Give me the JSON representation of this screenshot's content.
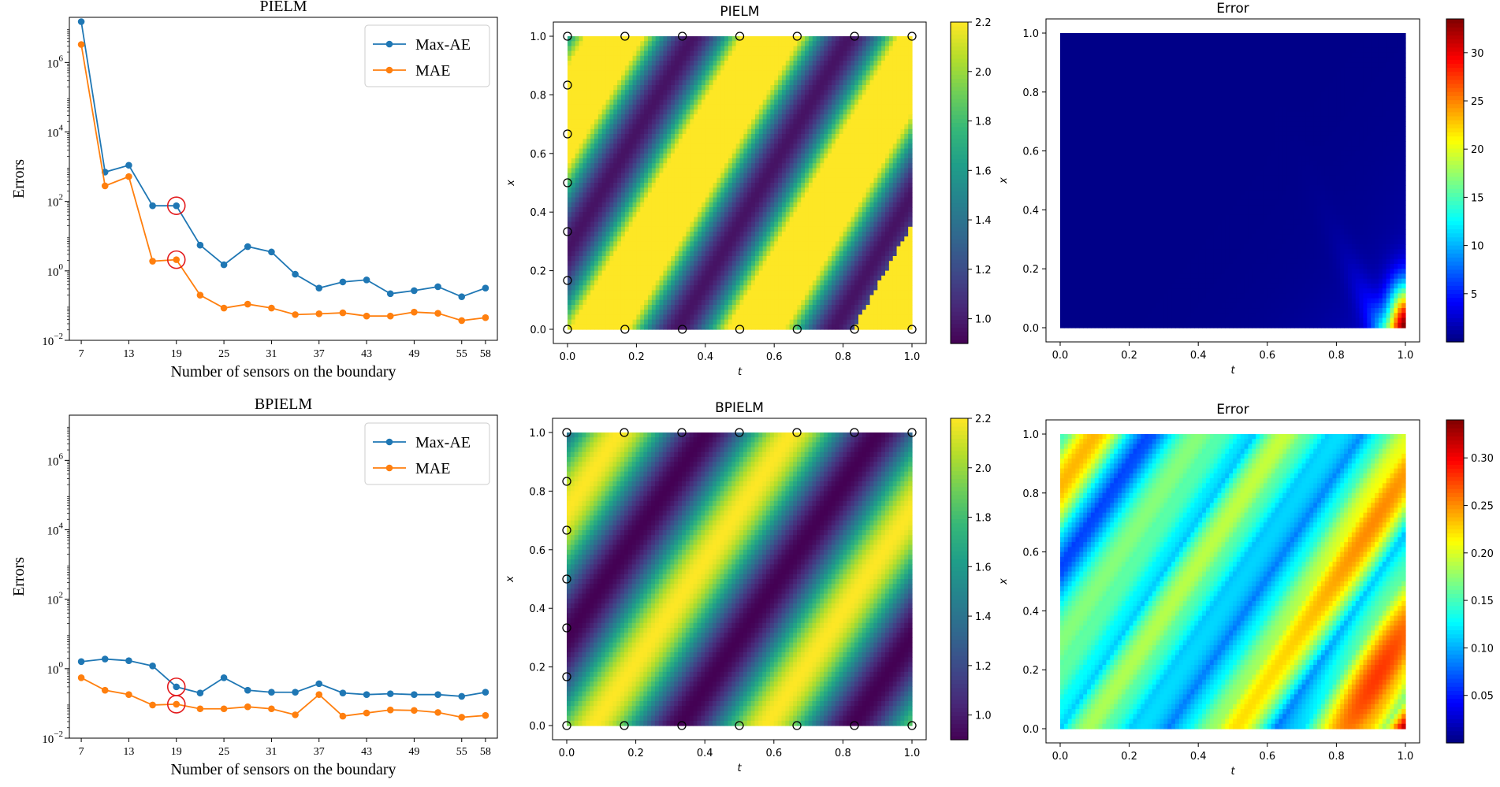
{
  "chart_data": [
    {
      "type": "line",
      "title": "PIELM",
      "xlabel": "Number of sensors on the boundary",
      "ylabel": "Errors",
      "yscale": "log",
      "ylim": [
        0.01,
        20000000
      ],
      "xlim": [
        5.5,
        59.5
      ],
      "xticks": [
        7,
        13,
        19,
        25,
        31,
        37,
        43,
        49,
        55,
        58
      ],
      "yticks": [
        0.01,
        1,
        100,
        10000,
        1000000
      ],
      "ytick_labels": [
        [
          "10",
          "−2"
        ],
        [
          "10",
          "0"
        ],
        [
          "10",
          "2"
        ],
        [
          "10",
          "4"
        ],
        [
          "10",
          "6"
        ]
      ],
      "legend_position": "upper right",
      "x": [
        7,
        10,
        13,
        16,
        19,
        22,
        25,
        28,
        31,
        34,
        37,
        40,
        43,
        46,
        49,
        52,
        55,
        58
      ],
      "series": [
        {
          "name": "Max-AE",
          "color": "#1f77b4",
          "values": [
            15000000,
            700,
            1100,
            75,
            75,
            5.5,
            1.5,
            5.0,
            3.5,
            0.8,
            0.32,
            0.48,
            0.55,
            0.22,
            0.27,
            0.35,
            0.18,
            0.32
          ]
        },
        {
          "name": "MAE",
          "color": "#ff7f0e",
          "values": [
            3300000,
            280,
            520,
            1.9,
            2.1,
            0.2,
            0.085,
            0.11,
            0.085,
            0.055,
            0.058,
            0.062,
            0.05,
            0.05,
            0.065,
            0.06,
            0.037,
            0.045
          ]
        }
      ],
      "highlight_x": 19
    },
    {
      "type": "heatmap",
      "title": "PIELM",
      "xlabel": "t",
      "ylabel": "x",
      "xlim": [
        0,
        1
      ],
      "ylim": [
        0,
        1
      ],
      "xticks": [
        0.0,
        0.2,
        0.4,
        0.6,
        0.8,
        1.0
      ],
      "yticks": [
        0.0,
        0.2,
        0.4,
        0.6,
        0.8,
        1.0
      ],
      "colormap": "viridis",
      "colorbar_ticks": [
        1.0,
        1.2,
        1.4,
        1.6,
        1.8,
        2.0,
        2.2
      ],
      "colorbar_range": [
        0.9,
        2.2
      ],
      "sensor_t": [
        0.0,
        0.1667,
        0.3333,
        0.5,
        0.6667,
        0.8333,
        1.0
      ],
      "sensor_x_boundary": [
        0.1667,
        0.3333,
        0.5,
        0.6667,
        0.8333
      ]
    },
    {
      "type": "heatmap",
      "title": "Error",
      "xlabel": "t",
      "ylabel": "x",
      "xlim": [
        0,
        1
      ],
      "ylim": [
        0,
        1
      ],
      "xticks": [
        0.0,
        0.2,
        0.4,
        0.6,
        0.8,
        1.0
      ],
      "yticks": [
        0.0,
        0.2,
        0.4,
        0.6,
        0.8,
        1.0
      ],
      "colormap": "jet",
      "colorbar_ticks": [
        5,
        10,
        15,
        20,
        25,
        30
      ],
      "colorbar_range": [
        0,
        33.5
      ]
    },
    {
      "type": "line",
      "title": "BPIELM",
      "xlabel": "Number of sensors on the boundary",
      "ylabel": "Errors",
      "yscale": "log",
      "ylim": [
        0.01,
        20000000
      ],
      "xlim": [
        5.5,
        59.5
      ],
      "xticks": [
        7,
        13,
        19,
        25,
        31,
        37,
        43,
        49,
        55,
        58
      ],
      "yticks": [
        0.01,
        1,
        100,
        10000,
        1000000
      ],
      "ytick_labels": [
        [
          "10",
          "−2"
        ],
        [
          "10",
          "0"
        ],
        [
          "10",
          "2"
        ],
        [
          "10",
          "4"
        ],
        [
          "10",
          "6"
        ]
      ],
      "legend_position": "upper right",
      "x": [
        7,
        10,
        13,
        16,
        19,
        22,
        25,
        28,
        31,
        34,
        37,
        40,
        43,
        46,
        49,
        52,
        55,
        58
      ],
      "series": [
        {
          "name": "Max-AE",
          "color": "#1f77b4",
          "values": [
            1.6,
            1.9,
            1.7,
            1.2,
            0.3,
            0.2,
            0.55,
            0.24,
            0.21,
            0.21,
            0.37,
            0.2,
            0.18,
            0.19,
            0.18,
            0.18,
            0.16,
            0.21
          ]
        },
        {
          "name": "MAE",
          "color": "#ff7f0e",
          "values": [
            0.55,
            0.24,
            0.18,
            0.09,
            0.095,
            0.07,
            0.07,
            0.08,
            0.07,
            0.047,
            0.18,
            0.043,
            0.053,
            0.065,
            0.063,
            0.055,
            0.04,
            0.045
          ]
        }
      ],
      "highlight_x": 19
    },
    {
      "type": "heatmap",
      "title": "BPIELM",
      "xlabel": "t",
      "ylabel": "x",
      "xlim": [
        0,
        1
      ],
      "ylim": [
        0,
        1
      ],
      "xticks": [
        0.0,
        0.2,
        0.4,
        0.6,
        0.8,
        1.0
      ],
      "yticks": [
        0.0,
        0.2,
        0.4,
        0.6,
        0.8,
        1.0
      ],
      "colormap": "viridis",
      "colorbar_ticks": [
        1.0,
        1.2,
        1.4,
        1.6,
        1.8,
        2.0,
        2.2
      ],
      "colorbar_range": [
        0.9,
        2.2
      ],
      "sensor_t": [
        0.0,
        0.1667,
        0.3333,
        0.5,
        0.6667,
        0.8333,
        1.0
      ],
      "sensor_x_boundary": [
        0.1667,
        0.3333,
        0.5,
        0.6667,
        0.8333
      ]
    },
    {
      "type": "heatmap",
      "title": "Error",
      "xlabel": "t",
      "ylabel": "x",
      "xlim": [
        0,
        1
      ],
      "ylim": [
        0,
        1
      ],
      "xticks": [
        0.0,
        0.2,
        0.4,
        0.6,
        0.8,
        1.0
      ],
      "yticks": [
        0.0,
        0.2,
        0.4,
        0.6,
        0.8,
        1.0
      ],
      "colormap": "jet",
      "colorbar_ticks": [
        0.05,
        0.1,
        0.15,
        0.2,
        0.25,
        0.3
      ],
      "colorbar_range": [
        0,
        0.34
      ]
    }
  ]
}
